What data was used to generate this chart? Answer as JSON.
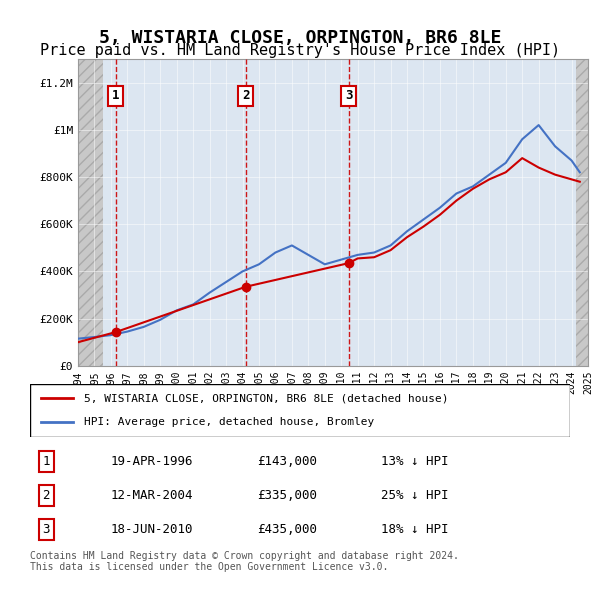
{
  "title": "5, WISTARIA CLOSE, ORPINGTON, BR6 8LE",
  "subtitle": "Price paid vs. HM Land Registry's House Price Index (HPI)",
  "title_fontsize": 13,
  "subtitle_fontsize": 11,
  "sales": [
    {
      "num": 1,
      "date_str": "19-APR-1996",
      "year": 1996.3,
      "price": 143000,
      "pct": "13%"
    },
    {
      "num": 2,
      "date_str": "12-MAR-2004",
      "year": 2004.2,
      "price": 335000,
      "pct": "25%"
    },
    {
      "num": 3,
      "date_str": "18-JUN-2010",
      "year": 2010.45,
      "price": 435000,
      "pct": "18%"
    }
  ],
  "hpi_years": [
    1994,
    1995,
    1996,
    1997,
    1998,
    1999,
    2000,
    2001,
    2002,
    2003,
    2004,
    2005,
    2006,
    2007,
    2008,
    2009,
    2010,
    2011,
    2012,
    2013,
    2014,
    2015,
    2016,
    2017,
    2018,
    2019,
    2020,
    2021,
    2022,
    2023,
    2024,
    2024.5
  ],
  "hpi_values": [
    115000,
    122000,
    130000,
    145000,
    165000,
    195000,
    235000,
    260000,
    310000,
    355000,
    400000,
    430000,
    480000,
    510000,
    470000,
    430000,
    450000,
    470000,
    480000,
    510000,
    570000,
    620000,
    670000,
    730000,
    760000,
    810000,
    860000,
    960000,
    1020000,
    930000,
    870000,
    820000
  ],
  "property_years": [
    1994,
    1996.3,
    2004.2,
    2010.45,
    2011,
    2012,
    2013,
    2014,
    2015,
    2016,
    2017,
    2018,
    2019,
    2020,
    2021,
    2022,
    2023,
    2023.5,
    2024,
    2024.5
  ],
  "property_values": [
    100000,
    143000,
    335000,
    435000,
    455000,
    460000,
    490000,
    545000,
    590000,
    640000,
    700000,
    750000,
    790000,
    820000,
    880000,
    840000,
    810000,
    800000,
    790000,
    780000
  ],
  "ylim": [
    0,
    1300000
  ],
  "xlim_min": 1994,
  "xlim_max": 2025,
  "hpi_color": "#4472c4",
  "property_color": "#cc0000",
  "vline_color": "#cc0000",
  "marker_color": "#cc0000",
  "background_chart": "#dce6f1",
  "background_hatch": "#c0c0c0",
  "footer_text": "Contains HM Land Registry data © Crown copyright and database right 2024.\nThis data is licensed under the Open Government Licence v3.0.",
  "legend_property": "5, WISTARIA CLOSE, ORPINGTON, BR6 8LE (detached house)",
  "legend_hpi": "HPI: Average price, detached house, Bromley",
  "xtick_years": [
    1994,
    1995,
    1996,
    1997,
    1998,
    1999,
    2000,
    2001,
    2002,
    2003,
    2004,
    2005,
    2006,
    2007,
    2008,
    2009,
    2010,
    2011,
    2012,
    2013,
    2014,
    2015,
    2016,
    2017,
    2018,
    2019,
    2020,
    2021,
    2022,
    2023,
    2024,
    2025
  ],
  "ytick_values": [
    0,
    200000,
    400000,
    600000,
    800000,
    1000000,
    1200000
  ],
  "ytick_labels": [
    "£0",
    "£200K",
    "£400K",
    "£600K",
    "£800K",
    "£1M",
    "£1.2M"
  ],
  "table_rows": [
    {
      "num": 1,
      "date": "19-APR-1996",
      "price": "£143,000",
      "pct": "13% ↓ HPI"
    },
    {
      "num": 2,
      "date": "12-MAR-2004",
      "price": "£335,000",
      "pct": "25% ↓ HPI"
    },
    {
      "num": 3,
      "date": "18-JUN-2010",
      "price": "£435,000",
      "pct": "18% ↓ HPI"
    }
  ]
}
